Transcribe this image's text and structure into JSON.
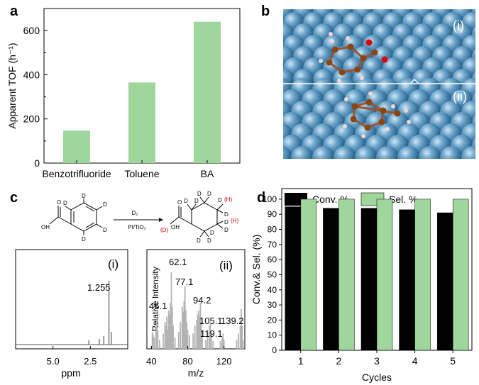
{
  "panels": {
    "a": "a",
    "b": "b",
    "c": "c",
    "d": "d"
  },
  "chart_data": [
    {
      "panel": "a",
      "type": "bar",
      "categories": [
        "Benzotrifluoride",
        "Toluene",
        "BA"
      ],
      "values": [
        147,
        365,
        640
      ],
      "ylabel": "Apparent TOF (h⁻¹)",
      "xlabel": "",
      "ylim": [
        0,
        700
      ],
      "yticks": [
        "0",
        "200",
        "400",
        "600"
      ],
      "bar_color": "#9fd69b"
    },
    {
      "panel": "c-i",
      "type": "line",
      "title": "(i)",
      "xlabel": "ppm",
      "xticks": [
        "5.0",
        "2.5"
      ],
      "peak_label": "1.255",
      "peaks_ppm": [
        1.255,
        1.6,
        1.1,
        1.9,
        2.6
      ],
      "line_color": "#555555"
    },
    {
      "panel": "c-ii",
      "type": "bar",
      "title": "(ii)",
      "xlabel": "m/z",
      "ylabel": "Relative Intensity",
      "xticks": [
        "40",
        "80",
        "120"
      ],
      "xlim": [
        35,
        143
      ],
      "peak_labels": [
        "62.1",
        "77.1",
        "94.2",
        "46.1",
        "105.1",
        "119.1",
        "139.2"
      ],
      "peaks": [
        {
          "x": 41,
          "y": 0.22
        },
        {
          "x": 42,
          "y": 0.18
        },
        {
          "x": 43,
          "y": 0.15
        },
        {
          "x": 45,
          "y": 0.28
        },
        {
          "x": 46,
          "y": 0.38
        },
        {
          "x": 47,
          "y": 0.25
        },
        {
          "x": 49,
          "y": 0.12
        },
        {
          "x": 53,
          "y": 0.2
        },
        {
          "x": 55,
          "y": 0.35
        },
        {
          "x": 56,
          "y": 0.3
        },
        {
          "x": 57,
          "y": 0.42
        },
        {
          "x": 58,
          "y": 0.25
        },
        {
          "x": 59,
          "y": 0.5
        },
        {
          "x": 60,
          "y": 0.45
        },
        {
          "x": 61,
          "y": 0.6
        },
        {
          "x": 62,
          "y": 1.0
        },
        {
          "x": 63,
          "y": 0.55
        },
        {
          "x": 64,
          "y": 0.3
        },
        {
          "x": 66,
          "y": 0.15
        },
        {
          "x": 70,
          "y": 0.22
        },
        {
          "x": 72,
          "y": 0.35
        },
        {
          "x": 74,
          "y": 0.55
        },
        {
          "x": 75,
          "y": 0.48
        },
        {
          "x": 76,
          "y": 0.62
        },
        {
          "x": 77,
          "y": 0.82
        },
        {
          "x": 78,
          "y": 0.5
        },
        {
          "x": 79,
          "y": 0.35
        },
        {
          "x": 80,
          "y": 0.25
        },
        {
          "x": 82,
          "y": 0.18
        },
        {
          "x": 86,
          "y": 0.2
        },
        {
          "x": 88,
          "y": 0.3
        },
        {
          "x": 90,
          "y": 0.38
        },
        {
          "x": 91,
          "y": 0.45
        },
        {
          "x": 92,
          "y": 0.5
        },
        {
          "x": 93,
          "y": 0.42
        },
        {
          "x": 94,
          "y": 0.6
        },
        {
          "x": 95,
          "y": 0.35
        },
        {
          "x": 96,
          "y": 0.25
        },
        {
          "x": 100,
          "y": 0.12
        },
        {
          "x": 102,
          "y": 0.22
        },
        {
          "x": 104,
          "y": 0.3
        },
        {
          "x": 105,
          "y": 0.33
        },
        {
          "x": 106,
          "y": 0.2
        },
        {
          "x": 108,
          "y": 0.1
        },
        {
          "x": 116,
          "y": 0.1
        },
        {
          "x": 118,
          "y": 0.16
        },
        {
          "x": 119,
          "y": 0.2
        },
        {
          "x": 120,
          "y": 0.12
        },
        {
          "x": 134,
          "y": 0.12
        },
        {
          "x": 136,
          "y": 0.2
        },
        {
          "x": 138,
          "y": 0.3
        },
        {
          "x": 139,
          "y": 0.52
        },
        {
          "x": 140,
          "y": 0.3
        },
        {
          "x": 141,
          "y": 0.12
        }
      ],
      "bar_color": "#b3b3b3"
    },
    {
      "panel": "d",
      "type": "bar",
      "categories": [
        "1",
        "2",
        "3",
        "4",
        "5"
      ],
      "series": [
        {
          "name": "Conv. %",
          "values": [
            95,
            94,
            94,
            93,
            91
          ],
          "color": "#000000"
        },
        {
          "name": "Sel. %",
          "values": [
            100,
            100,
            100,
            100,
            100
          ],
          "color": "#9fd69b"
        }
      ],
      "xlabel": "Cycles",
      "ylabel": "Conv.& Sel.  (%)",
      "ylim": [
        0,
        107
      ],
      "yticks": [
        "0",
        "10",
        "20",
        "30",
        "40",
        "50",
        "60",
        "70",
        "80",
        "90",
        "100"
      ],
      "legend": "top"
    }
  ],
  "reaction": {
    "reagent": "D₂",
    "catalyst": "Pt/TiO₂",
    "deuterium": "D",
    "hydrogen_mark": "(H)",
    "deuterium_mark": "(D)",
    "acid_oh": "OH",
    "acid_o": "O"
  },
  "microscopy": {
    "label_top": "(i)",
    "label_bottom": "(ii)"
  }
}
